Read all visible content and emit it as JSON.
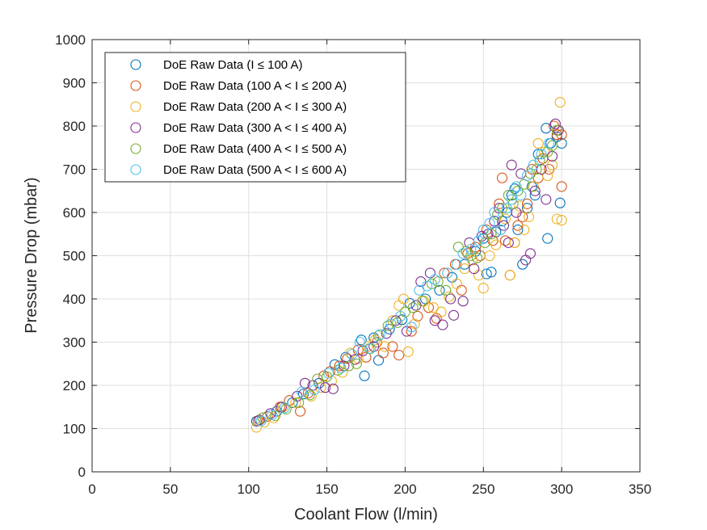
{
  "chart_data": {
    "type": "scatter",
    "xlabel": "Coolant Flow (l/min)",
    "ylabel": "Pressure Drop (mbar)",
    "xlim": [
      0,
      350
    ],
    "ylim": [
      0,
      1000
    ],
    "xticks": [
      "0",
      "50",
      "100",
      "150",
      "200",
      "250",
      "300",
      "350"
    ],
    "yticks": [
      "0",
      "100",
      "200",
      "300",
      "400",
      "500",
      "600",
      "700",
      "800",
      "900",
      "1000"
    ],
    "grid": true,
    "legend_position": "top-left",
    "marker": "open-circle",
    "series": [
      {
        "name": "DoE Raw Data (I ≤ 100 A)",
        "color": "#0072BD",
        "points": [
          [
            105,
            117
          ],
          [
            118,
            140
          ],
          [
            128,
            160
          ],
          [
            135,
            180
          ],
          [
            145,
            205
          ],
          [
            155,
            248
          ],
          [
            162,
            265
          ],
          [
            172,
            305
          ],
          [
            174,
            222
          ],
          [
            180,
            310
          ],
          [
            183,
            258
          ],
          [
            190,
            330
          ],
          [
            198,
            352
          ],
          [
            203,
            390
          ],
          [
            213,
            400
          ],
          [
            222,
            420
          ],
          [
            230,
            450
          ],
          [
            238,
            480
          ],
          [
            245,
            510
          ],
          [
            250,
            540
          ],
          [
            252,
            458
          ],
          [
            255,
            462
          ],
          [
            258,
            555
          ],
          [
            262,
            580
          ],
          [
            265,
            600
          ],
          [
            268,
            640
          ],
          [
            270,
            655
          ],
          [
            272,
            560
          ],
          [
            275,
            480
          ],
          [
            278,
            610
          ],
          [
            281,
            660
          ],
          [
            283,
            640
          ],
          [
            285,
            735
          ],
          [
            290,
            795
          ],
          [
            291,
            540
          ],
          [
            293,
            760
          ],
          [
            297,
            775
          ],
          [
            299,
            622
          ],
          [
            300,
            760
          ]
        ]
      },
      {
        "name": "DoE Raw Data (100 A < I ≤ 200 A)",
        "color": "#D95319",
        "points": [
          [
            106,
            118
          ],
          [
            112,
            128
          ],
          [
            120,
            150
          ],
          [
            126,
            165
          ],
          [
            133,
            140
          ],
          [
            138,
            182
          ],
          [
            148,
            222
          ],
          [
            152,
            232
          ],
          [
            158,
            245
          ],
          [
            163,
            262
          ],
          [
            170,
            282
          ],
          [
            175,
            265
          ],
          [
            182,
            300
          ],
          [
            186,
            275
          ],
          [
            192,
            290
          ],
          [
            196,
            270
          ],
          [
            204,
            325
          ],
          [
            208,
            360
          ],
          [
            215,
            380
          ],
          [
            220,
            355
          ],
          [
            225,
            460
          ],
          [
            232,
            480
          ],
          [
            236,
            420
          ],
          [
            240,
            505
          ],
          [
            245,
            520
          ],
          [
            248,
            500
          ],
          [
            252,
            560
          ],
          [
            256,
            535
          ],
          [
            260,
            620
          ],
          [
            262,
            680
          ],
          [
            264,
            535
          ],
          [
            267,
            455
          ],
          [
            270,
            530
          ],
          [
            272,
            570
          ],
          [
            275,
            590
          ],
          [
            278,
            620
          ],
          [
            281,
            700
          ],
          [
            285,
            680
          ],
          [
            288,
            725
          ],
          [
            292,
            700
          ],
          [
            295,
            800
          ],
          [
            297,
            780
          ],
          [
            300,
            660
          ],
          [
            300,
            780
          ]
        ]
      },
      {
        "name": "DoE Raw Data (200 A < I ≤ 300 A)",
        "color": "#EDB120",
        "points": [
          [
            105,
            103
          ],
          [
            110,
            115
          ],
          [
            116,
            125
          ],
          [
            122,
            150
          ],
          [
            130,
            160
          ],
          [
            140,
            175
          ],
          [
            146,
            195
          ],
          [
            153,
            210
          ],
          [
            160,
            230
          ],
          [
            165,
            275
          ],
          [
            170,
            262
          ],
          [
            176,
            290
          ],
          [
            181,
            305
          ],
          [
            187,
            290
          ],
          [
            192,
            350
          ],
          [
            196,
            385
          ],
          [
            199,
            400
          ],
          [
            202,
            278
          ],
          [
            206,
            342
          ],
          [
            212,
            395
          ],
          [
            218,
            380
          ],
          [
            223,
            370
          ],
          [
            228,
            405
          ],
          [
            233,
            435
          ],
          [
            238,
            470
          ],
          [
            243,
            490
          ],
          [
            247,
            455
          ],
          [
            250,
            425
          ],
          [
            254,
            500
          ],
          [
            258,
            525
          ],
          [
            261,
            560
          ],
          [
            264,
            585
          ],
          [
            267,
            455
          ],
          [
            270,
            530
          ],
          [
            273,
            615
          ],
          [
            276,
            560
          ],
          [
            279,
            590
          ],
          [
            282,
            660
          ],
          [
            285,
            760
          ],
          [
            289,
            740
          ],
          [
            291,
            685
          ],
          [
            294,
            710
          ],
          [
            297,
            585
          ],
          [
            299,
            855
          ],
          [
            300,
            582
          ]
        ]
      },
      {
        "name": "DoE Raw Data (300 A < I ≤ 400 A)",
        "color": "#7E2F8E",
        "points": [
          [
            107,
            120
          ],
          [
            114,
            135
          ],
          [
            121,
            150
          ],
          [
            131,
            175
          ],
          [
            136,
            205
          ],
          [
            141,
            200
          ],
          [
            149,
            195
          ],
          [
            154,
            192
          ],
          [
            161,
            245
          ],
          [
            168,
            260
          ],
          [
            173,
            280
          ],
          [
            180,
            290
          ],
          [
            188,
            320
          ],
          [
            194,
            350
          ],
          [
            201,
            325
          ],
          [
            207,
            385
          ],
          [
            210,
            440
          ],
          [
            216,
            460
          ],
          [
            219,
            350
          ],
          [
            224,
            340
          ],
          [
            229,
            400
          ],
          [
            231,
            362
          ],
          [
            237,
            395
          ],
          [
            241,
            530
          ],
          [
            244,
            470
          ],
          [
            249,
            545
          ],
          [
            253,
            550
          ],
          [
            257,
            580
          ],
          [
            260,
            610
          ],
          [
            263,
            570
          ],
          [
            266,
            530
          ],
          [
            268,
            710
          ],
          [
            271,
            600
          ],
          [
            274,
            690
          ],
          [
            277,
            490
          ],
          [
            280,
            505
          ],
          [
            283,
            650
          ],
          [
            287,
            700
          ],
          [
            290,
            630
          ],
          [
            294,
            730
          ],
          [
            296,
            805
          ],
          [
            298,
            790
          ]
        ]
      },
      {
        "name": "DoE Raw Data (400 A < I ≤ 500 A)",
        "color": "#77AC30",
        "points": [
          [
            109,
            125
          ],
          [
            117,
            130
          ],
          [
            124,
            145
          ],
          [
            132,
            160
          ],
          [
            139,
            178
          ],
          [
            144,
            215
          ],
          [
            150,
            220
          ],
          [
            157,
            235
          ],
          [
            164,
            245
          ],
          [
            169,
            250
          ],
          [
            177,
            285
          ],
          [
            183,
            315
          ],
          [
            189,
            338
          ],
          [
            195,
            345
          ],
          [
            200,
            370
          ],
          [
            205,
            380
          ],
          [
            211,
            395
          ],
          [
            217,
            435
          ],
          [
            221,
            440
          ],
          [
            226,
            420
          ],
          [
            234,
            520
          ],
          [
            239,
            510
          ],
          [
            242,
            500
          ],
          [
            246,
            495
          ],
          [
            251,
            530
          ],
          [
            255,
            550
          ],
          [
            259,
            595
          ],
          [
            262,
            610
          ],
          [
            266,
            640
          ],
          [
            269,
            620
          ],
          [
            272,
            650
          ],
          [
            276,
            665
          ],
          [
            280,
            690
          ],
          [
            284,
            700
          ],
          [
            286,
            720
          ],
          [
            291,
            740
          ],
          [
            294,
            755
          ],
          [
            297,
            790
          ]
        ]
      },
      {
        "name": "DoE Raw Data (500 A < I ≤ 600 A)",
        "color": "#4DBEEE",
        "points": [
          [
            108,
            118
          ],
          [
            115,
            132
          ],
          [
            123,
            148
          ],
          [
            134,
            185
          ],
          [
            142,
            190
          ],
          [
            151,
            228
          ],
          [
            159,
            240
          ],
          [
            166,
            272
          ],
          [
            171,
            300
          ],
          [
            178,
            285
          ],
          [
            184,
            318
          ],
          [
            191,
            342
          ],
          [
            197,
            360
          ],
          [
            204,
            335
          ],
          [
            209,
            420
          ],
          [
            214,
            430
          ],
          [
            219,
            445
          ],
          [
            227,
            460
          ],
          [
            233,
            480
          ],
          [
            237,
            505
          ],
          [
            242,
            515
          ],
          [
            247,
            535
          ],
          [
            250,
            560
          ],
          [
            254,
            575
          ],
          [
            257,
            600
          ],
          [
            261,
            560
          ],
          [
            265,
            610
          ],
          [
            268,
            630
          ],
          [
            271,
            660
          ],
          [
            274,
            640
          ],
          [
            278,
            685
          ],
          [
            282,
            710
          ],
          [
            287,
            735
          ],
          [
            292,
            760
          ]
        ]
      }
    ]
  }
}
